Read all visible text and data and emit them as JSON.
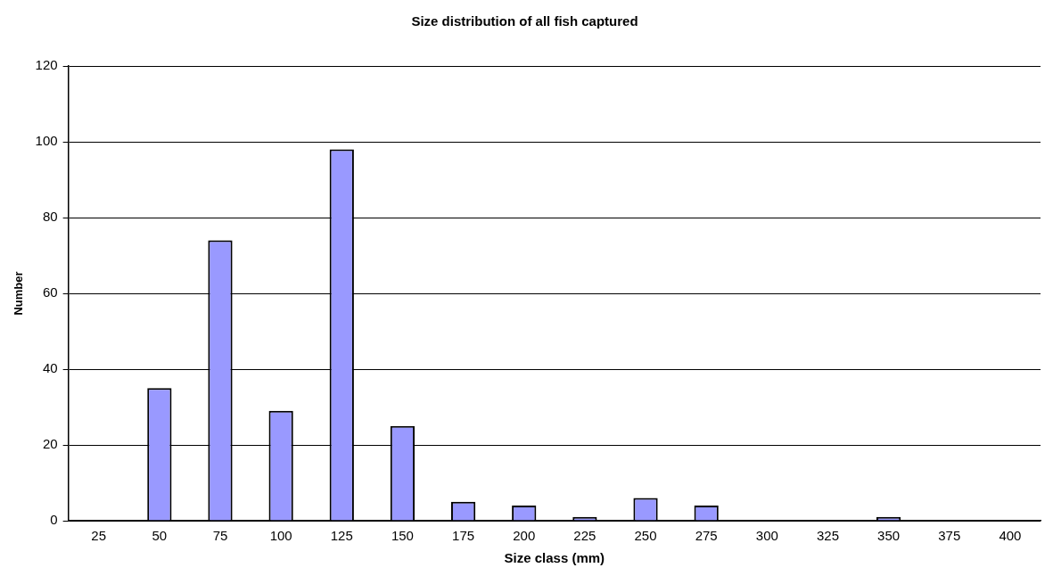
{
  "chart_data": {
    "type": "bar",
    "title": "Size distribution of all fish captured",
    "xlabel": "Size class (mm)",
    "ylabel": "Number",
    "categories": [
      "25",
      "50",
      "75",
      "100",
      "125",
      "150",
      "175",
      "200",
      "225",
      "250",
      "275",
      "300",
      "325",
      "350",
      "375",
      "400"
    ],
    "values": [
      0,
      35,
      74,
      29,
      98,
      25,
      5,
      4,
      1,
      6,
      4,
      0,
      0,
      1,
      0,
      0
    ],
    "color": "#9999ff",
    "ylim": [
      0,
      120
    ],
    "yticks": [
      0,
      20,
      40,
      60,
      80,
      100,
      120
    ],
    "grid": "y",
    "legend": false
  }
}
